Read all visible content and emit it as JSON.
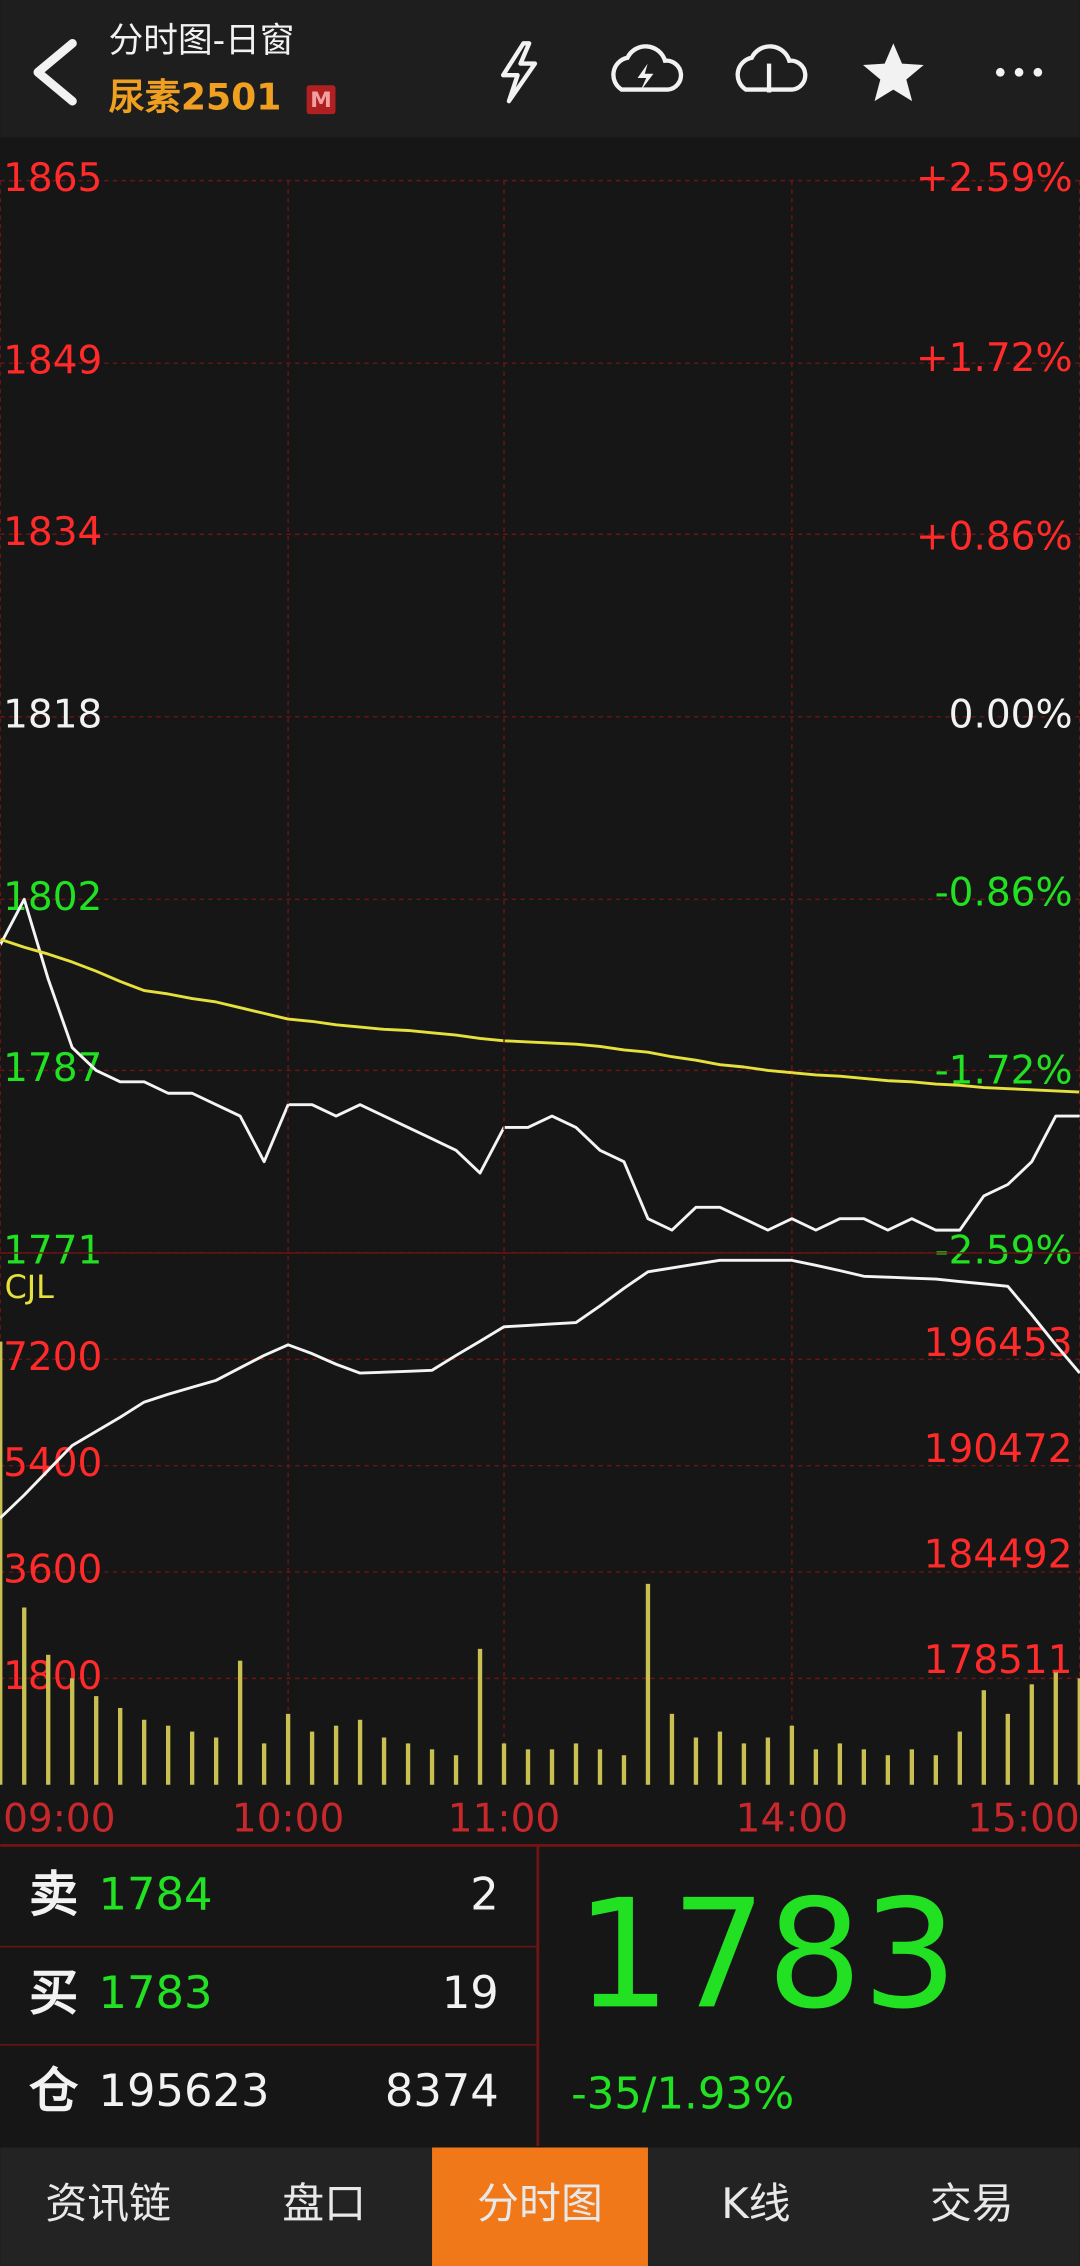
{
  "header": {
    "title": "分时图-日窗",
    "symbol": "尿素2501",
    "badge": "M"
  },
  "colors": {
    "up": "#ff2a2a",
    "down": "#22e022",
    "flat": "#f2f2f2"
  },
  "chart_data": [
    {
      "type": "line",
      "x": [
        0,
        5,
        10,
        15,
        20,
        25,
        30,
        35,
        40,
        45,
        50,
        55,
        60,
        65,
        70,
        75,
        80,
        85,
        90,
        95,
        100,
        105,
        110,
        115,
        120,
        125,
        130,
        135,
        140,
        145,
        150,
        155,
        160,
        165,
        170,
        175,
        180,
        185,
        190,
        195,
        200,
        205,
        210,
        215,
        220,
        225
      ],
      "xlim": [
        0,
        225
      ],
      "ylim": [
        1771,
        1865
      ],
      "yticks": [
        1865,
        1849,
        1834,
        1818,
        1802,
        1787,
        1771
      ],
      "y2lim": [
        -2.59,
        2.59
      ],
      "y2ticks": [
        {
          "value": 2.59,
          "label": "+2.59%"
        },
        {
          "value": 1.72,
          "label": "+1.72%"
        },
        {
          "value": 0.86,
          "label": "+0.86%"
        },
        {
          "value": 0,
          "label": "0.00%"
        },
        {
          "value": -0.86,
          "label": "-0.86%"
        },
        {
          "value": -1.72,
          "label": "-1.72%"
        },
        {
          "value": -2.59,
          "label": "-2.59%"
        }
      ],
      "grid": true,
      "series": [
        {
          "color": "#f4f4f4",
          "values": [
            1798,
            1802,
            1795,
            1789,
            1787,
            1786,
            1786,
            1785,
            1785,
            1784,
            1783,
            1779,
            1784,
            1784,
            1783,
            1784,
            1783,
            1782,
            1781,
            1780,
            1778,
            1782,
            1782,
            1783,
            1782,
            1780,
            1779,
            1774,
            1773,
            1775,
            1775,
            1774,
            1773,
            1774,
            1773,
            1774,
            1774,
            1773,
            1774,
            1773,
            1773,
            1776,
            1777,
            1779,
            1783,
            1783
          ]
        },
        {
          "color": "#e6e03c",
          "values": [
            1798.5,
            1797.8,
            1797.2,
            1796.5,
            1795.7,
            1794.8,
            1794.0,
            1793.7,
            1793.3,
            1793.0,
            1792.5,
            1792.0,
            1791.5,
            1791.3,
            1791.0,
            1790.8,
            1790.6,
            1790.5,
            1790.3,
            1790.1,
            1789.8,
            1789.6,
            1789.5,
            1789.4,
            1789.3,
            1789.1,
            1788.8,
            1788.6,
            1788.2,
            1787.9,
            1787.5,
            1787.3,
            1787.0,
            1786.8,
            1786.6,
            1786.5,
            1786.3,
            1786.1,
            1786.0,
            1785.8,
            1785.7,
            1785.5,
            1785.4,
            1785.3,
            1785.2,
            1785.1
          ]
        }
      ]
    },
    {
      "type": "bar",
      "title": "CJL",
      "x": [
        0,
        5,
        10,
        15,
        20,
        25,
        30,
        35,
        40,
        45,
        50,
        55,
        60,
        65,
        70,
        75,
        80,
        85,
        90,
        95,
        100,
        105,
        110,
        115,
        120,
        125,
        130,
        135,
        140,
        145,
        150,
        155,
        160,
        165,
        170,
        175,
        180,
        185,
        190,
        195,
        200,
        205,
        210,
        215,
        220,
        225
      ],
      "xlim": [
        0,
        225
      ],
      "xticks": [
        {
          "value": 0,
          "label": "09:00"
        },
        {
          "value": 60,
          "label": "10:00"
        },
        {
          "value": 105,
          "label": "11:00"
        },
        {
          "value": 165,
          "label": "14:00"
        },
        {
          "value": 225,
          "label": "15:00"
        }
      ],
      "ylim": [
        0,
        9000
      ],
      "yticks": [
        7200,
        5400,
        3600,
        1800
      ],
      "y2lim": [
        171600,
        201700
      ],
      "y2ticks": [
        196453,
        190472,
        184492,
        178511
      ],
      "grid": true,
      "series": [
        {
          "color": "#c8c050",
          "values": [
            7500,
            3000,
            2200,
            1800,
            1500,
            1300,
            1100,
            1000,
            900,
            800,
            2100,
            700,
            1200,
            900,
            1000,
            1100,
            800,
            700,
            600,
            500,
            2300,
            700,
            600,
            600,
            700,
            600,
            500,
            3400,
            1200,
            800,
            900,
            700,
            800,
            1000,
            600,
            700,
            600,
            500,
            600,
            500,
            900,
            1600,
            1200,
            1700,
            1900,
            1800
          ]
        },
        {
          "color": "#f4f4f4",
          "type": "line",
          "axis": "y2",
          "values": [
            186700,
            188000,
            189400,
            190800,
            191600,
            192400,
            193260,
            193700,
            194100,
            194490,
            195200,
            195900,
            196500,
            196000,
            195400,
            194900,
            194950,
            195000,
            195060,
            195900,
            196700,
            197520,
            197600,
            197680,
            197760,
            198700,
            199700,
            200630,
            200850,
            201070,
            201280,
            201280,
            201280,
            201280,
            201000,
            200700,
            200380,
            200330,
            200270,
            200220,
            200080,
            199950,
            199810,
            198200,
            196500,
            194900
          ]
        }
      ]
    }
  ],
  "quote": {
    "rows": [
      {
        "label": "卖",
        "price": 1784,
        "qty": 2
      },
      {
        "label": "买",
        "price": 1783,
        "qty": 19
      },
      {
        "label": "仓",
        "price": 195623,
        "qty": 8374
      }
    ],
    "last": 1783,
    "change": "-35/1.93%"
  },
  "tabs": [
    "资讯链",
    "盘口",
    "分时图",
    "K线",
    "交易"
  ],
  "active_tab": 2
}
